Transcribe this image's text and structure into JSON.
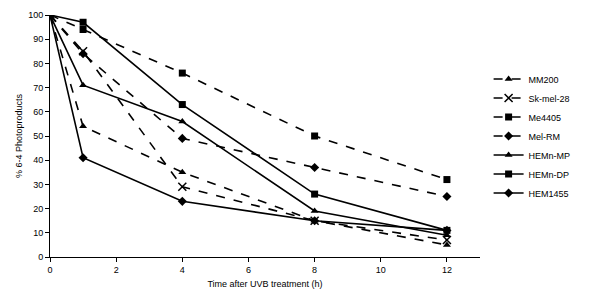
{
  "chart_data": {
    "type": "line",
    "x_label": "Time after UVB treatment (h)",
    "y_label": "% 6-4 Photoproducts",
    "x": [
      0,
      1,
      4,
      8,
      12
    ],
    "series": [
      {
        "name": "MM200",
        "color": "#000000",
        "marker": "triangle",
        "line_style": "dash",
        "values": [
          100,
          54,
          35,
          15,
          5
        ]
      },
      {
        "name": "Sk-mel-28",
        "color": "#000000",
        "marker": "x",
        "line_style": "dash",
        "values": [
          100,
          85,
          29,
          15,
          7
        ]
      },
      {
        "name": "Me4405",
        "color": "#000000",
        "marker": "square",
        "line_style": "dash",
        "values": [
          100,
          94,
          76,
          50,
          32
        ]
      },
      {
        "name": "Mel-RM",
        "color": "#000000",
        "marker": "diamond",
        "line_style": "dash",
        "values": [
          100,
          84,
          49,
          37,
          25
        ]
      },
      {
        "name": "HEMn-MP",
        "color": "#000000",
        "marker": "triangle",
        "line_style": "solid",
        "values": [
          100,
          71,
          56,
          19,
          9
        ]
      },
      {
        "name": "HEMn-DP",
        "color": "#000000",
        "marker": "square",
        "line_style": "solid",
        "values": [
          100,
          97,
          63,
          26,
          11
        ]
      },
      {
        "name": "HEM1455",
        "color": "#000000",
        "marker": "diamond",
        "line_style": "solid",
        "values": [
          100,
          41,
          23,
          15,
          11
        ]
      }
    ],
    "xlim": [
      0,
      13
    ],
    "xticks": [
      0,
      2,
      4,
      6,
      8,
      10,
      12
    ],
    "ylim": [
      0,
      100
    ],
    "yticks": [
      0,
      10,
      20,
      30,
      40,
      50,
      60,
      70,
      80,
      90,
      100
    ],
    "grid": false,
    "legend": "right"
  }
}
